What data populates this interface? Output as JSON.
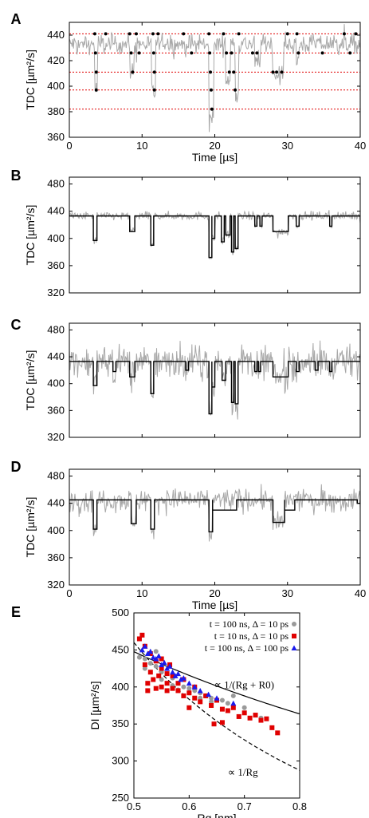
{
  "colors": {
    "trace": "#a8a8a8",
    "fit": "#000000",
    "level": "#e00000",
    "gray_pts": "#9a9a9a",
    "red_pts": "#e00000",
    "blue_pts": "#1a1aee"
  },
  "chart_data": [
    {
      "panel": "A",
      "type": "line",
      "xlabel": "Time [µs]",
      "ylabel": "TDC [µm²/s]",
      "xlim": [
        0,
        40
      ],
      "ylim": [
        360,
        450
      ],
      "xticks": [
        "0",
        "10",
        "20",
        "30",
        "40"
      ],
      "yticks": [
        "360",
        "380",
        "400",
        "420",
        "440"
      ],
      "levels": [
        441,
        426,
        411,
        397,
        382
      ],
      "series": [
        {
          "style": "gray-trace",
          "baseline": 433,
          "noise": 5,
          "dips": [
            [
              3.5,
              3.9,
              397
            ],
            [
              8.3,
              8.9,
              411
            ],
            [
              11.3,
              11.9,
              395
            ],
            [
              19.2,
              19.9,
              375
            ],
            [
              21.5,
              22.1,
              405
            ],
            [
              22.8,
              23.3,
              395
            ],
            [
              25.5,
              26.2,
              418
            ],
            [
              28.0,
              29.5,
              410
            ],
            [
              31.2,
              31.6,
              418
            ]
          ]
        },
        {
          "style": "black-dots",
          "points": [
            [
              3.5,
              441
            ],
            [
              3.6,
              426
            ],
            [
              3.7,
              411
            ],
            [
              3.7,
              397
            ],
            [
              5.0,
              441
            ],
            [
              8.3,
              441
            ],
            [
              8.5,
              426
            ],
            [
              8.7,
              411
            ],
            [
              9.2,
              441
            ],
            [
              9.6,
              426
            ],
            [
              11.5,
              441
            ],
            [
              11.6,
              426
            ],
            [
              11.7,
              411
            ],
            [
              11.7,
              397
            ],
            [
              12.2,
              441
            ],
            [
              15.7,
              441
            ],
            [
              16.8,
              426
            ],
            [
              19.2,
              441
            ],
            [
              19.3,
              426
            ],
            [
              19.4,
              411
            ],
            [
              19.5,
              397
            ],
            [
              19.6,
              382
            ],
            [
              21.2,
              441
            ],
            [
              21.6,
              426
            ],
            [
              22.0,
              411
            ],
            [
              22.3,
              426
            ],
            [
              22.6,
              411
            ],
            [
              22.8,
              397
            ],
            [
              23.3,
              441
            ],
            [
              25.2,
              426
            ],
            [
              25.8,
              426
            ],
            [
              28.0,
              411
            ],
            [
              28.5,
              411
            ],
            [
              29.2,
              411
            ],
            [
              30.0,
              441
            ],
            [
              31.3,
              441
            ],
            [
              31.5,
              426
            ],
            [
              34.8,
              426
            ],
            [
              37.8,
              441
            ],
            [
              38.6,
              426
            ],
            [
              39.4,
              441
            ]
          ]
        }
      ]
    },
    {
      "panel": "B",
      "type": "line",
      "ylabel": "TDC [µm²/s]",
      "xlim": [
        0,
        40
      ],
      "ylim": [
        320,
        490
      ],
      "yticks": [
        "320",
        "360",
        "400",
        "440",
        "480"
      ],
      "series": [
        {
          "style": "gray-trace",
          "baseline": 433,
          "noise": 4
        },
        {
          "style": "black-step",
          "baseline": 433,
          "steps": [
            [
              3.3,
              3.8,
              397
            ],
            [
              8.3,
              9.0,
              410
            ],
            [
              11.2,
              11.6,
              390
            ],
            [
              19.2,
              19.6,
              372
            ],
            [
              19.6,
              20.0,
              400
            ],
            [
              20.9,
              21.3,
              395
            ],
            [
              21.5,
              22.1,
              405
            ],
            [
              22.3,
              22.6,
              380
            ],
            [
              22.8,
              23.2,
              385
            ],
            [
              25.5,
              25.8,
              418
            ],
            [
              26.2,
              26.5,
              418
            ],
            [
              28.0,
              30.1,
              410
            ],
            [
              31.2,
              31.6,
              418
            ],
            [
              35.8,
              36.1,
              418
            ]
          ]
        }
      ]
    },
    {
      "panel": "C",
      "type": "line",
      "ylabel": "TDC [µm²/s]",
      "xlim": [
        0,
        40
      ],
      "ylim": [
        320,
        490
      ],
      "yticks": [
        "320",
        "360",
        "400",
        "440",
        "480"
      ],
      "series": [
        {
          "style": "gray-trace",
          "baseline": 433,
          "noise": 16
        },
        {
          "style": "black-step",
          "baseline": 433,
          "steps": [
            [
              3.3,
              3.8,
              397
            ],
            [
              6.0,
              6.4,
              418
            ],
            [
              8.3,
              9.0,
              410
            ],
            [
              11.2,
              11.6,
              385
            ],
            [
              16.0,
              16.4,
              420
            ],
            [
              19.2,
              19.6,
              355
            ],
            [
              19.6,
              20.0,
              395
            ],
            [
              21.0,
              21.5,
              405
            ],
            [
              22.3,
              22.6,
              372
            ],
            [
              22.8,
              23.2,
              370
            ],
            [
              25.5,
              25.8,
              418
            ],
            [
              26.0,
              26.3,
              418
            ],
            [
              28.0,
              30.1,
              410
            ],
            [
              31.2,
              31.6,
              418
            ],
            [
              33.8,
              34.2,
              420
            ],
            [
              35.8,
              36.1,
              418
            ]
          ]
        }
      ]
    },
    {
      "panel": "D",
      "type": "line",
      "xlabel": "Time [µs]",
      "ylabel": "TDC [µm²/s]",
      "xlim": [
        0,
        40
      ],
      "ylim": [
        320,
        490
      ],
      "xticks": [
        "0",
        "10",
        "20",
        "30",
        "40"
      ],
      "yticks": [
        "320",
        "360",
        "400",
        "440",
        "480"
      ],
      "series": [
        {
          "style": "gray-trace",
          "baseline": 445,
          "noise": 11,
          "dips": [
            [
              3.3,
              3.8,
              400
            ],
            [
              8.5,
              9.2,
              410
            ],
            [
              11.2,
              11.7,
              400
            ],
            [
              19.2,
              19.7,
              395
            ],
            [
              28.0,
              29.6,
              410
            ]
          ]
        },
        {
          "style": "black-step",
          "baseline": 445,
          "steps": [
            [
              3.3,
              3.8,
              402
            ],
            [
              8.5,
              9.2,
              410
            ],
            [
              11.2,
              11.7,
              402
            ],
            [
              19.2,
              19.7,
              398
            ],
            [
              19.7,
              23.0,
              430
            ],
            [
              28.0,
              29.6,
              412
            ],
            [
              29.6,
              31.0,
              430
            ],
            [
              39.6,
              40.0,
              440
            ]
          ]
        }
      ]
    },
    {
      "panel": "E",
      "type": "scatter",
      "xlabel": "Rg [nm]",
      "ylabel": "DI [µm²/s]",
      "xlim": [
        0.5,
        0.8
      ],
      "ylim": [
        250,
        500
      ],
      "xticks": [
        "0.5",
        "0.6",
        "0.7",
        "0.8"
      ],
      "yticks": [
        "250",
        "300",
        "350",
        "400",
        "450",
        "500"
      ],
      "legend": [
        "t = 100 ns, Δ = 10 ps",
        "t = 10 ns, Δ = 10 ps",
        "t = 100 ns, Δ = 100 ps"
      ],
      "annotations": [
        "∝ 1/(Rg + R0)",
        "∝ 1/Rg"
      ],
      "series": [
        {
          "name": "t = 100 ns, Δ = 10 ps",
          "marker": "circle",
          "color": "gray_pts",
          "points": [
            [
              0.51,
              440
            ],
            [
              0.52,
              438
            ],
            [
              0.53,
              432
            ],
            [
              0.54,
              428
            ],
            [
              0.55,
              420
            ],
            [
              0.56,
              418
            ],
            [
              0.57,
              412
            ],
            [
              0.58,
              405
            ],
            [
              0.59,
              400
            ],
            [
              0.6,
              398
            ],
            [
              0.61,
              395
            ],
            [
              0.62,
              392
            ],
            [
              0.63,
              388
            ],
            [
              0.64,
              385
            ],
            [
              0.66,
              382
            ],
            [
              0.68,
              388
            ],
            [
              0.7,
              372
            ],
            [
              0.73,
              358
            ],
            [
              0.55,
              410
            ],
            [
              0.57,
              402
            ],
            [
              0.53,
              445
            ],
            [
              0.54,
              448
            ],
            [
              0.52,
              425
            ],
            [
              0.56,
              395
            ],
            [
              0.58,
              396
            ],
            [
              0.6,
              392
            ],
            [
              0.62,
              385
            ],
            [
              0.64,
              380
            ],
            [
              0.67,
              378
            ]
          ]
        },
        {
          "name": "t = 10 ns, Δ = 10 ps",
          "marker": "square",
          "color": "red_pts",
          "points": [
            [
              0.51,
              465
            ],
            [
              0.515,
              470
            ],
            [
              0.52,
              455
            ],
            [
              0.52,
              430
            ],
            [
              0.525,
              405
            ],
            [
              0.53,
              445
            ],
            [
              0.53,
              420
            ],
            [
              0.54,
              398
            ],
            [
              0.54,
              435
            ],
            [
              0.545,
              415
            ],
            [
              0.55,
              425
            ],
            [
              0.55,
              400
            ],
            [
              0.56,
              405
            ],
            [
              0.56,
              395
            ],
            [
              0.565,
              430
            ],
            [
              0.57,
              398
            ],
            [
              0.57,
              415
            ],
            [
              0.58,
              395
            ],
            [
              0.58,
              405
            ],
            [
              0.59,
              388
            ],
            [
              0.59,
              410
            ],
            [
              0.6,
              392
            ],
            [
              0.61,
              385
            ],
            [
              0.61,
              400
            ],
            [
              0.62,
              380
            ],
            [
              0.63,
              388
            ],
            [
              0.64,
              375
            ],
            [
              0.65,
              382
            ],
            [
              0.66,
              370
            ],
            [
              0.67,
              368
            ],
            [
              0.68,
              372
            ],
            [
              0.69,
              360
            ],
            [
              0.7,
              365
            ],
            [
              0.71,
              358
            ],
            [
              0.72,
              362
            ],
            [
              0.73,
              355
            ],
            [
              0.74,
              357
            ],
            [
              0.75,
              345
            ],
            [
              0.76,
              338
            ],
            [
              0.525,
              395
            ],
            [
              0.535,
              410
            ],
            [
              0.55,
              438
            ],
            [
              0.56,
              418
            ],
            [
              0.6,
              372
            ],
            [
              0.645,
              350
            ],
            [
              0.66,
              352
            ]
          ]
        },
        {
          "name": "t = 100 ns, Δ = 100 ps",
          "marker": "triangle",
          "color": "blue_pts",
          "points": [
            [
              0.515,
              450
            ],
            [
              0.52,
              455
            ],
            [
              0.525,
              445
            ],
            [
              0.53,
              448
            ],
            [
              0.535,
              440
            ],
            [
              0.54,
              438
            ],
            [
              0.545,
              442
            ],
            [
              0.55,
              430
            ],
            [
              0.555,
              433
            ],
            [
              0.56,
              425
            ],
            [
              0.565,
              428
            ],
            [
              0.57,
              420
            ],
            [
              0.575,
              415
            ],
            [
              0.58,
              418
            ],
            [
              0.585,
              410
            ],
            [
              0.59,
              412
            ],
            [
              0.6,
              405
            ],
            [
              0.61,
              400
            ],
            [
              0.62,
              395
            ],
            [
              0.635,
              390
            ],
            [
              0.65,
              385
            ],
            [
              0.68,
              378
            ]
          ]
        }
      ],
      "curves": [
        {
          "label": "∝ 1/(Rg + R0)",
          "style": "solid",
          "params": {
            "A": 431,
            "R0": 0.8
          }
        },
        {
          "label": "∝ 1/Rg",
          "style": "dashed",
          "params": {
            "A": 230
          }
        }
      ]
    }
  ]
}
